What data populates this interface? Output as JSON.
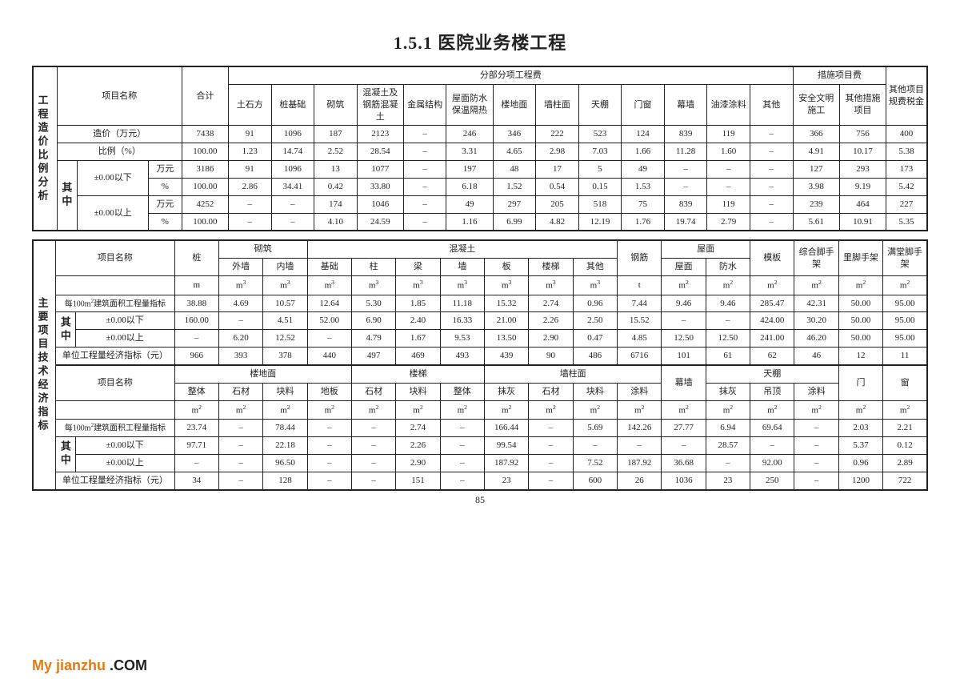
{
  "pageTitle": "1.5.1 医院业务楼工程",
  "pageNumber": "85",
  "watermarkOrange": "My jianzhu ",
  "watermarkBlack": ".COM",
  "t1": {
    "vlabel": "工程造价比例分析",
    "h": {
      "xmmc": "项目名称",
      "hj": "合计",
      "fbfx": "分部分项工程费",
      "csxmf": "措施项目费",
      "qtgf": "其他项目规费税金",
      "c": [
        "土石方",
        "桩基础",
        "砌筑",
        "混凝土及钢筋混凝土",
        "金属结构",
        "屋面防水保温隔热",
        "楼地面",
        "墙柱面",
        "天棚",
        "门窗",
        "幕墙",
        "油漆涂料",
        "其他"
      ],
      "cs": [
        "安全文明施工",
        "其他措施项目"
      ]
    },
    "rows": {
      "zj": {
        "lbl": "造价（万元）",
        "v": [
          "7438",
          "91",
          "1096",
          "187",
          "2123",
          "–",
          "246",
          "346",
          "222",
          "523",
          "124",
          "839",
          "119",
          "–",
          "366",
          "756",
          "400"
        ]
      },
      "bl": {
        "lbl": "比例（%）",
        "v": [
          "100.00",
          "1.23",
          "14.74",
          "2.52",
          "28.54",
          "–",
          "3.31",
          "4.65",
          "2.98",
          "7.03",
          "1.66",
          "11.28",
          "1.60",
          "–",
          "4.91",
          "10.17",
          "5.38"
        ]
      },
      "qz": "其中",
      "below": {
        "lbl": "±0.00以下",
        "wy": {
          "u": "万元",
          "v": [
            "3186",
            "91",
            "1096",
            "13",
            "1077",
            "–",
            "197",
            "48",
            "17",
            "5",
            "49",
            "–",
            "–",
            "–",
            "127",
            "293",
            "173"
          ]
        },
        "pc": {
          "u": "%",
          "v": [
            "100.00",
            "2.86",
            "34.41",
            "0.42",
            "33.80",
            "–",
            "6.18",
            "1.52",
            "0.54",
            "0.15",
            "1.53",
            "–",
            "–",
            "–",
            "3.98",
            "9.19",
            "5.42"
          ]
        }
      },
      "above": {
        "lbl": "±0.00以上",
        "wy": {
          "u": "万元",
          "v": [
            "4252",
            "–",
            "–",
            "174",
            "1046",
            "–",
            "49",
            "297",
            "205",
            "518",
            "75",
            "839",
            "119",
            "–",
            "239",
            "464",
            "227"
          ]
        },
        "pc": {
          "u": "%",
          "v": [
            "100.00",
            "–",
            "–",
            "4.10",
            "24.59",
            "–",
            "1.16",
            "6.99",
            "4.82",
            "12.19",
            "1.76",
            "19.74",
            "2.79",
            "–",
            "5.61",
            "10.91",
            "5.35"
          ]
        }
      }
    }
  },
  "t2": {
    "vlabel": "主要项目技术经济指标",
    "sec1": {
      "xmmc": "项目名称",
      "groups": {
        "zhuang": "桩",
        "qz": "砌筑",
        "hnt": "混凝土",
        "gj": "钢筋",
        "wm": "屋面",
        "mb": "模板",
        "zhsj": "综合脚手架",
        "ljsj": "里脚手架",
        "mtjsj": "满堂脚手架"
      },
      "sub": {
        "qz": [
          "外墙",
          "内墙"
        ],
        "hnt": [
          "基础",
          "柱",
          "梁",
          "墙",
          "板",
          "楼梯",
          "其他"
        ],
        "wm": [
          "屋面",
          "防水"
        ]
      },
      "units": [
        "m",
        "m³",
        "m³",
        "m³",
        "m³",
        "m³",
        "m³",
        "m³",
        "m³",
        "m³",
        "t",
        "m²",
        "m²",
        "m²",
        "m²",
        "m²",
        "m²"
      ],
      "rows": {
        "r1": {
          "lbl": "每100m²建筑面积工程量指标",
          "v": [
            "38.88",
            "4.69",
            "10.57",
            "12.64",
            "5.30",
            "1.85",
            "11.18",
            "15.32",
            "2.74",
            "0.96",
            "7.44",
            "9.46",
            "9.46",
            "285.47",
            "42.31",
            "50.00",
            "95.00"
          ]
        },
        "qz": "其中",
        "below": {
          "lbl": "±0.00以下",
          "v": [
            "160.00",
            "–",
            "4.51",
            "52.00",
            "6.90",
            "2.40",
            "16.33",
            "21.00",
            "2.26",
            "2.50",
            "15.52",
            "–",
            "–",
            "424.00",
            "30.20",
            "50.00",
            "95.00"
          ]
        },
        "above": {
          "lbl": "±0.00以上",
          "v": [
            "–",
            "6.20",
            "12.52",
            "–",
            "4.79",
            "1.67",
            "9.53",
            "13.50",
            "2.90",
            "0.47",
            "4.85",
            "12.50",
            "12.50",
            "241.00",
            "46.20",
            "50.00",
            "95.00"
          ]
        },
        "econ": {
          "lbl": "单位工程量经济指标（元）",
          "v": [
            "966",
            "393",
            "378",
            "440",
            "497",
            "469",
            "493",
            "439",
            "90",
            "486",
            "6716",
            "101",
            "61",
            "62",
            "46",
            "12",
            "11"
          ]
        }
      }
    },
    "sec2": {
      "xmmc": "项目名称",
      "groups": {
        "ldm": "楼地面",
        "lt": "楼梯",
        "qzm": "墙柱面",
        "mq": "幕墙",
        "tp": "天棚",
        "men": "门",
        "chuang": "窗"
      },
      "sub": {
        "ldm": [
          "整体",
          "石材",
          "块料",
          "地板"
        ],
        "lt": [
          "石材",
          "块料",
          "整体"
        ],
        "qzm": [
          "抹灰",
          "石材",
          "块料",
          "涂料"
        ],
        "tp": [
          "抹灰",
          "吊顶",
          "涂料"
        ]
      },
      "units": [
        "m²",
        "m²",
        "m²",
        "m²",
        "m²",
        "m²",
        "m²",
        "m²",
        "m²",
        "m²",
        "m²",
        "m²",
        "m²",
        "m²",
        "m²",
        "m²",
        "m²"
      ],
      "rows": {
        "r1": {
          "lbl": "每100m²建筑面积工程量指标",
          "v": [
            "23.74",
            "–",
            "78.44",
            "–",
            "–",
            "2.74",
            "–",
            "166.44",
            "–",
            "5.69",
            "142.26",
            "27.77",
            "6.94",
            "69.64",
            "–",
            "2.03",
            "2.21"
          ]
        },
        "qz": "其中",
        "below": {
          "lbl": "±0.00以下",
          "v": [
            "97.71",
            "–",
            "22.18",
            "–",
            "–",
            "2.26",
            "–",
            "99.54",
            "–",
            "–",
            "–",
            "–",
            "28.57",
            "–",
            "–",
            "5.37",
            "0.12"
          ]
        },
        "above": {
          "lbl": "±0.00以上",
          "v": [
            "–",
            "–",
            "96.50",
            "–",
            "–",
            "2.90",
            "–",
            "187.92",
            "–",
            "7.52",
            "187.92",
            "36.68",
            "–",
            "92.00",
            "–",
            "0.96",
            "2.89"
          ]
        },
        "econ": {
          "lbl": "单位工程量经济指标（元）",
          "v": [
            "34",
            "–",
            "128",
            "–",
            "–",
            "151",
            "–",
            "23",
            "–",
            "600",
            "26",
            "1036",
            "23",
            "250",
            "–",
            "1200",
            "722"
          ]
        }
      }
    }
  }
}
